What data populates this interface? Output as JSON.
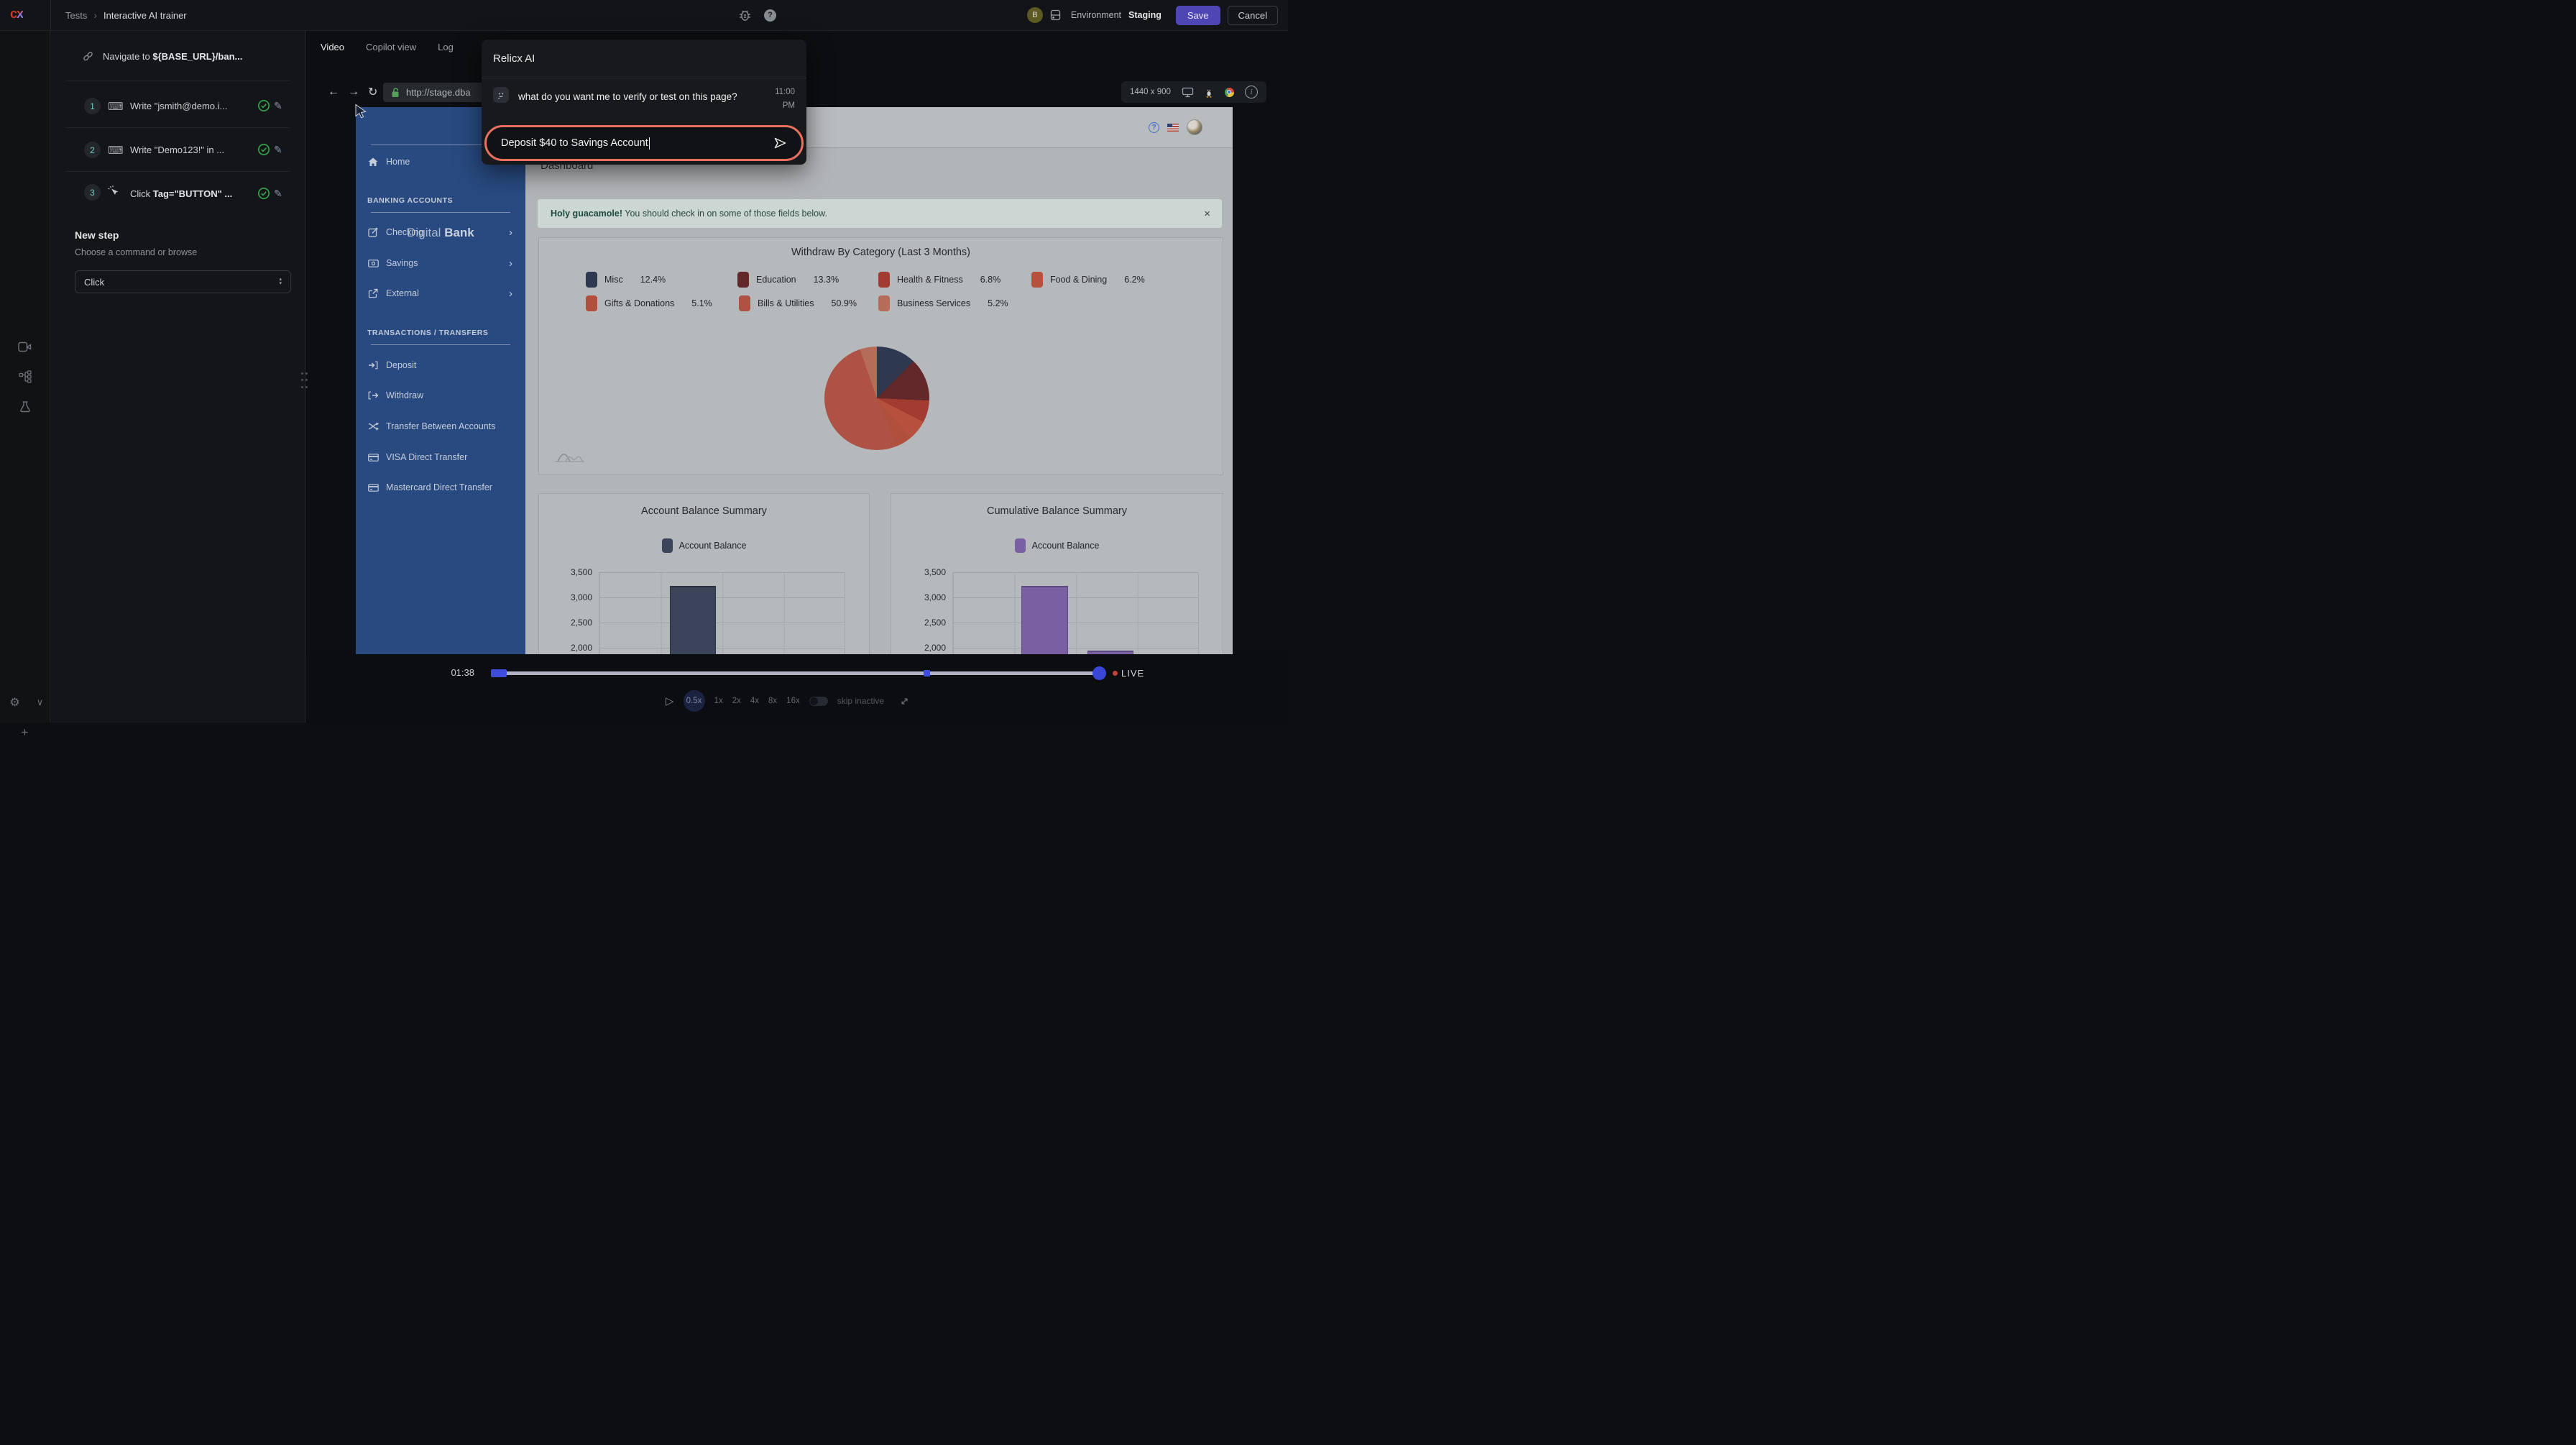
{
  "icons": {
    "back": "←",
    "forward": "→",
    "refresh": "↻",
    "play": "▷",
    "close_x": "×",
    "pencil": "✎",
    "keyboard": "⌨",
    "gear": "⚙",
    "plus": "+",
    "chevron_down": "∨",
    "chevron_right": "›",
    "select_up": "▴",
    "select_down": "▾",
    "breadcrumb_sep": "›",
    "question_mark": "?",
    "info_i": "i",
    "help_q": "?",
    "avatar_letter_alt": "B"
  },
  "topbar": {
    "logo_c": "c",
    "logo_x": "x",
    "breadcrumb_parent": "Tests",
    "breadcrumb_current": "Interactive AI trainer",
    "avatar": "B",
    "environment_label": "Environment",
    "environment_value": "Staging",
    "save": "Save",
    "cancel": "Cancel"
  },
  "steps": {
    "navigate_prefix": "Navigate to ",
    "navigate_target": "${BASE_URL}/ban...",
    "items": [
      {
        "num": "1",
        "action": "Write ",
        "detail": "\"jsmith@demo.i..."
      },
      {
        "num": "2",
        "action": "Write ",
        "detail": "\"Demo123!\" in ..."
      },
      {
        "num": "3",
        "action": "Click ",
        "detail": "Tag=\"BUTTON\" ..."
      }
    ],
    "new_step_title": "New step",
    "new_step_hint": "Choose a command or browse",
    "command_select_value": "Click"
  },
  "tabs": {
    "video": "Video",
    "copilot": "Copilot view",
    "log": "Log"
  },
  "browser": {
    "url": "http://stage.dba",
    "resolution": "1440 x 900"
  },
  "assistant": {
    "title": "Relicx AI",
    "message": "what do you want me to verify or test on this page?",
    "time_hour": "11:00",
    "time_ampm": "PM",
    "input_value": "Deposit $40 to Savings Account"
  },
  "bank": {
    "brand_light": "Digital ",
    "brand_bold": "Bank",
    "home": "Home",
    "section_accounts": "BANKING ACCOUNTS",
    "accounts": [
      {
        "label": "Checking"
      },
      {
        "label": "Savings"
      },
      {
        "label": "External"
      }
    ],
    "section_transactions": "TRANSACTIONS / TRANSFERS",
    "transactions": [
      {
        "label": "Deposit"
      },
      {
        "label": "Withdraw"
      },
      {
        "label": "Transfer Between Accounts"
      },
      {
        "label": "VISA Direct Transfer"
      },
      {
        "label": "Mastercard Direct Transfer"
      }
    ]
  },
  "dashboard": {
    "title": "Dashboard",
    "alert_bold": "Holy guacamole!",
    "alert_text": " You should check in on some of those fields below."
  },
  "chart_data": [
    {
      "type": "pie",
      "title": "Withdraw By Category (Last 3 Months)",
      "legend_position": "top",
      "slices": [
        {
          "label": "Misc",
          "pct": "12.4%",
          "value": 12.4,
          "color": "#2e3950"
        },
        {
          "label": "Education",
          "pct": "13.3%",
          "value": 13.3,
          "color": "#63282a"
        },
        {
          "label": "Health & Fitness",
          "pct": "6.8%",
          "value": 6.8,
          "color": "#a23c31"
        },
        {
          "label": "Food & Dining",
          "pct": "6.2%",
          "value": 6.2,
          "color": "#b8503e"
        },
        {
          "label": "Gifts & Donations",
          "pct": "5.1%",
          "value": 5.1,
          "color": "#b04f3c"
        },
        {
          "label": "Bills & Utilities",
          "pct": "50.9%",
          "value": 50.9,
          "color": "#ad5244"
        },
        {
          "label": "Business Services",
          "pct": "5.2%",
          "value": 5.2,
          "color": "#b56c59"
        }
      ]
    },
    {
      "type": "bar",
      "title": "Account Balance Summary",
      "legend": "Account Balance",
      "color": "#3b4459",
      "border_color": "#2a3143",
      "yticks": [
        "3,500",
        "3,000",
        "2,500",
        "2,000"
      ],
      "ytick_values": [
        3500,
        3000,
        2500,
        2000
      ],
      "values": [
        3230
      ],
      "ylim_visible": [
        1860,
        3500
      ],
      "grid": true
    },
    {
      "type": "bar",
      "title": "Cumulative Balance Summary",
      "legend": "Account Balance",
      "color": "#7a5fa3",
      "border_color": "#5d4a85",
      "yticks": [
        "3,500",
        "3,000",
        "2,500",
        "2,000"
      ],
      "ytick_values": [
        3500,
        3000,
        2500,
        2000
      ],
      "values": [
        3230,
        1950
      ],
      "ylim_visible": [
        1860,
        3500
      ],
      "grid": true
    }
  ],
  "player": {
    "time": "01:38",
    "live": "LIVE",
    "speeds": [
      "0.5x",
      "1x",
      "2x",
      "4x",
      "8x",
      "16x"
    ],
    "active_speed": "0.5x",
    "skip_label": "skip inactive"
  }
}
